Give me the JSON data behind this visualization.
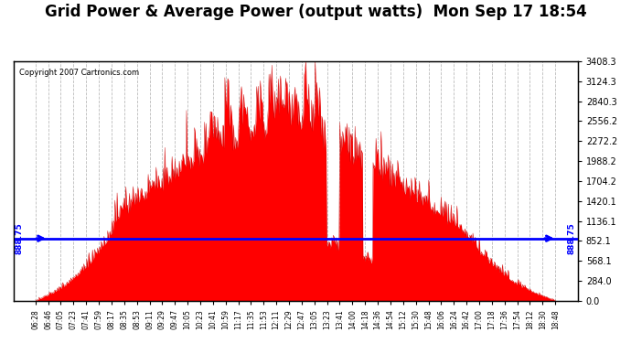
{
  "title": "Grid Power & Average Power (output watts)  Mon Sep 17 18:54",
  "copyright": "Copyright 2007 Cartronics.com",
  "avg_line_value": 888.75,
  "avg_label": "888.75",
  "y_max": 3408.3,
  "y_min": 0.0,
  "y_right_ticks": [
    0.0,
    284.0,
    568.1,
    852.1,
    1136.1,
    1420.1,
    1704.2,
    1988.2,
    2272.2,
    2556.2,
    2840.3,
    3124.3,
    3408.3
  ],
  "fill_color": "#ff0000",
  "line_color": "#cc0000",
  "avg_line_color": "#0000ff",
  "grid_color": "#aaaaaa",
  "background_color": "#ffffff",
  "plot_bg_color": "#ffffff",
  "title_fontsize": 12,
  "x_tick_labels": [
    "06:28",
    "06:46",
    "07:05",
    "07:23",
    "07:41",
    "07:59",
    "08:17",
    "08:35",
    "08:53",
    "09:11",
    "09:29",
    "09:47",
    "10:05",
    "10:23",
    "10:41",
    "10:59",
    "11:17",
    "11:35",
    "11:53",
    "12:11",
    "12:29",
    "12:47",
    "13:05",
    "13:23",
    "13:41",
    "14:00",
    "14:18",
    "14:36",
    "14:54",
    "15:12",
    "15:30",
    "15:48",
    "16:06",
    "16:24",
    "16:42",
    "17:00",
    "17:18",
    "17:36",
    "17:54",
    "18:12",
    "18:30",
    "18:48"
  ],
  "num_points": 720,
  "seed": 42
}
